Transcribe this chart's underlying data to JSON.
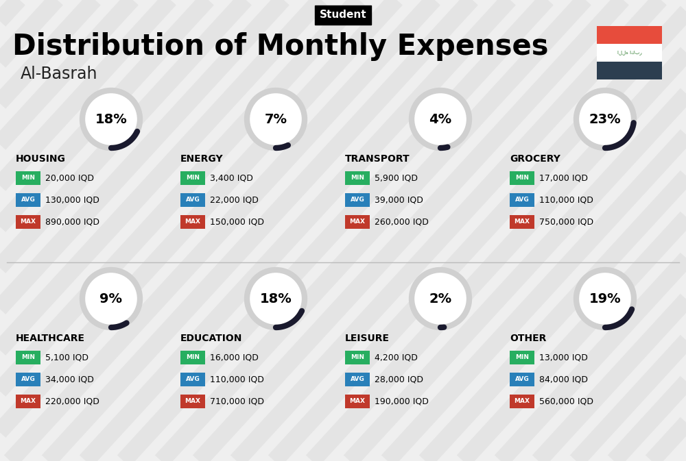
{
  "title": "Distribution of Monthly Expenses",
  "subtitle": "Student",
  "location": "Al-Basrah",
  "background_color": "#efefef",
  "categories": [
    {
      "name": "HOUSING",
      "percent": 18,
      "min": "20,000 IQD",
      "avg": "130,000 IQD",
      "max": "890,000 IQD",
      "col": 0,
      "row": 0
    },
    {
      "name": "ENERGY",
      "percent": 7,
      "min": "3,400 IQD",
      "avg": "22,000 IQD",
      "max": "150,000 IQD",
      "col": 1,
      "row": 0
    },
    {
      "name": "TRANSPORT",
      "percent": 4,
      "min": "5,900 IQD",
      "avg": "39,000 IQD",
      "max": "260,000 IQD",
      "col": 2,
      "row": 0
    },
    {
      "name": "GROCERY",
      "percent": 23,
      "min": "17,000 IQD",
      "avg": "110,000 IQD",
      "max": "750,000 IQD",
      "col": 3,
      "row": 0
    },
    {
      "name": "HEALTHCARE",
      "percent": 9,
      "min": "5,100 IQD",
      "avg": "34,000 IQD",
      "max": "220,000 IQD",
      "col": 0,
      "row": 1
    },
    {
      "name": "EDUCATION",
      "percent": 18,
      "min": "16,000 IQD",
      "avg": "110,000 IQD",
      "max": "710,000 IQD",
      "col": 1,
      "row": 1
    },
    {
      "name": "LEISURE",
      "percent": 2,
      "min": "4,200 IQD",
      "avg": "28,000 IQD",
      "max": "190,000 IQD",
      "col": 2,
      "row": 1
    },
    {
      "name": "OTHER",
      "percent": 19,
      "min": "13,000 IQD",
      "avg": "84,000 IQD",
      "max": "560,000 IQD",
      "col": 3,
      "row": 1
    }
  ],
  "color_min": "#27ae60",
  "color_avg": "#2980b9",
  "color_max": "#c0392b",
  "label_min": "MIN",
  "label_avg": "AVG",
  "label_max": "MAX",
  "flag_red": "#e74c3c",
  "flag_dark": "#2c3e50",
  "circle_bg": "#d0d0d0",
  "circle_fill": "#ffffff",
  "arc_color": "#1a1a2e",
  "stripe_color": "#e0e0e0"
}
